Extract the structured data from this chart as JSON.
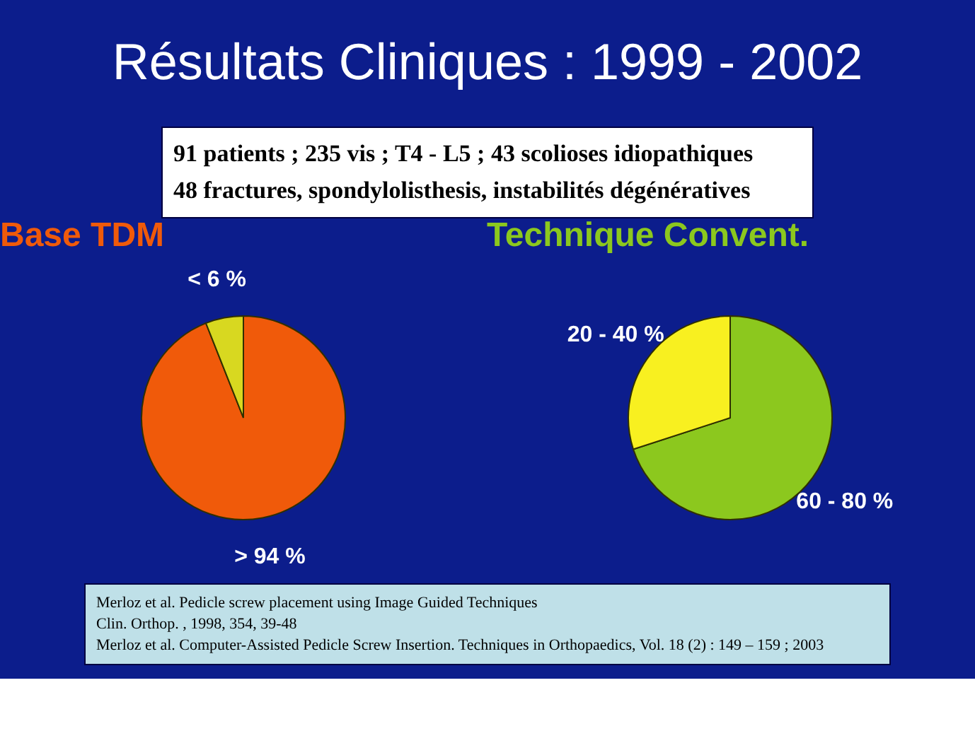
{
  "chart_data": [
    {
      "type": "other",
      "title": "Résultats Cliniques : 1999 - 2002",
      "annotations": [
        "91 patients ; 235 vis ; T4 - L5 ; 43 scolioses idiopathiques",
        "48 fractures, spondylolisthesis, instabilités dégénératives"
      ]
    },
    {
      "type": "pie",
      "title": "Base TDM",
      "categories": [
        "> 94 %",
        "< 6 %"
      ],
      "values": [
        94,
        6
      ],
      "colors": [
        "#f05a0a",
        "#d8d820"
      ]
    },
    {
      "type": "pie",
      "title": "Technique Convent.",
      "categories": [
        "60 - 80 %",
        "20 - 40 %"
      ],
      "values": [
        70,
        30
      ],
      "colors": [
        "#8cc81e",
        "#f8f020"
      ]
    },
    {
      "type": "other",
      "annotations": [
        "Merloz et al. Pedicle screw placement using Image Guided Techniques",
        "Clin. Orthop. , 1998, 354, 39-48",
        "Merloz et al. Computer-Assisted Pedicle Screw Insertion. Techniques in Orthopaedics, Vol. 18 (2) : 149 – 159 ; 2003"
      ]
    }
  ]
}
